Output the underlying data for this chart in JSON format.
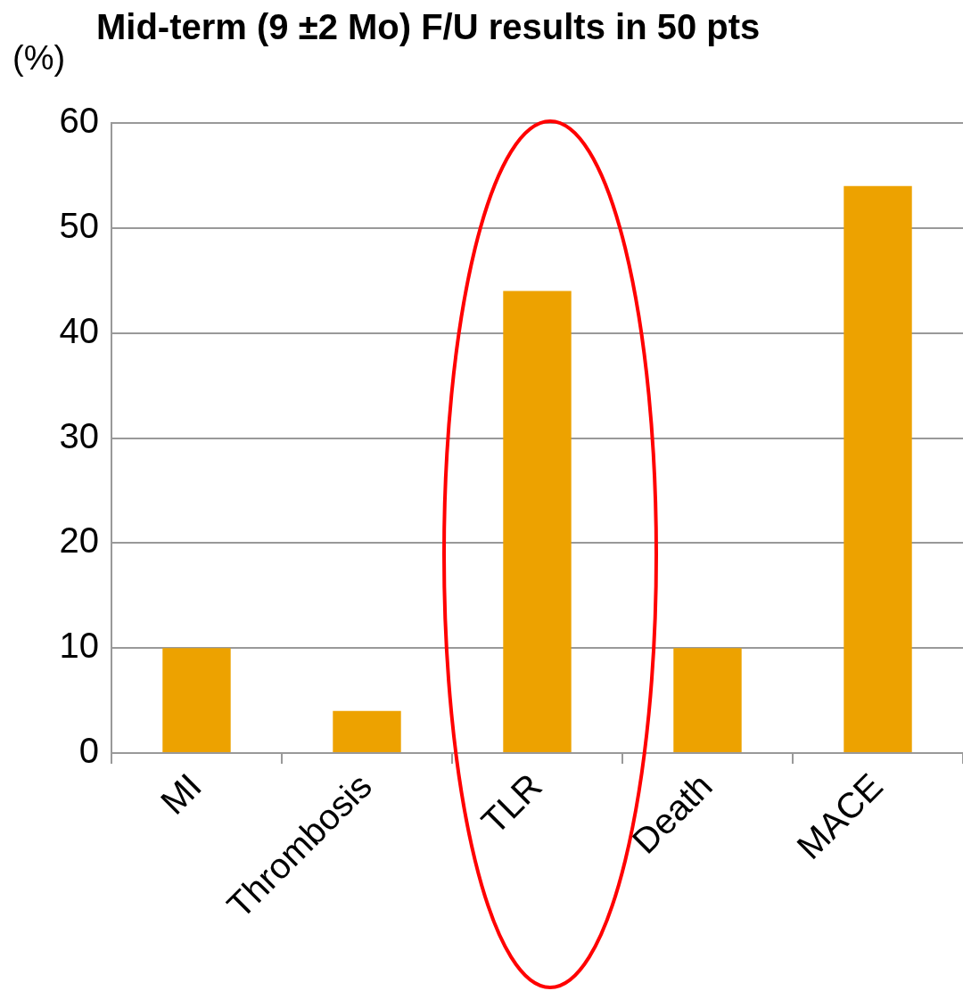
{
  "chart_data": {
    "type": "bar",
    "title": "Mid-term (9 ±2 Mo) F/U results in 50 pts",
    "ylabel": "(%)",
    "categories": [
      "MI",
      "Thrombosis",
      "TLR",
      "Death",
      "MACE"
    ],
    "values": [
      10,
      4,
      44,
      10,
      54
    ],
    "color": "#eda200",
    "ylim": [
      0,
      60
    ],
    "yticks": [
      0,
      10,
      20,
      30,
      40,
      50,
      60
    ],
    "grid": "y",
    "legend": false
  }
}
